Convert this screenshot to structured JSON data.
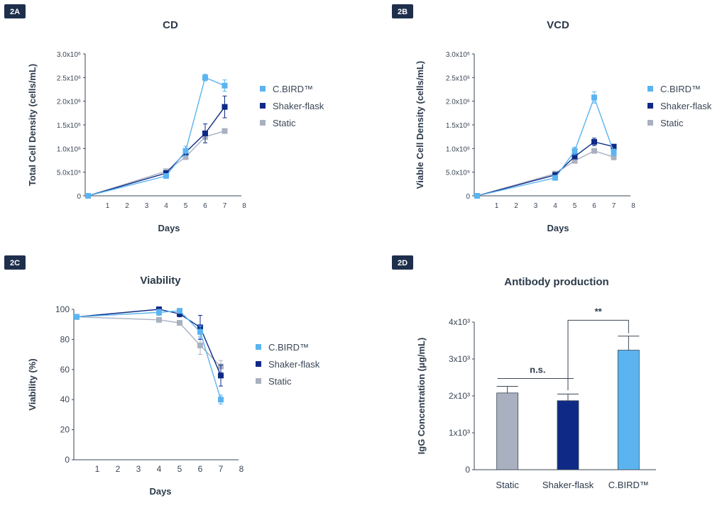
{
  "colors": {
    "cbird": "#5bb4f0",
    "shaker": "#0e2a86",
    "static": "#a9b1c0",
    "tag": "#1e2f4c"
  },
  "chart_data": [
    {
      "id": "2A",
      "type": "line",
      "title": "CD",
      "xlabel": "Days",
      "ylabel": "Total Cell Density (cells/mL)",
      "xlim": [
        0,
        8
      ],
      "ylim": [
        0,
        3000000
      ],
      "xticks": [
        "1",
        "2",
        "3",
        "4",
        "5",
        "6",
        "7",
        "8"
      ],
      "yticks": [
        {
          "v": 0,
          "label": "0"
        },
        {
          "v": 500000,
          "label": "5.0x10⁵"
        },
        {
          "v": 1000000,
          "label": "1.0x10⁶"
        },
        {
          "v": 1500000,
          "label": "1.5x10⁶"
        },
        {
          "v": 2000000,
          "label": "2.0x10⁶"
        },
        {
          "v": 2500000,
          "label": "2.5x10⁶"
        },
        {
          "v": 3000000,
          "label": "3.0x10⁶"
        }
      ],
      "legend_position": "right",
      "series": [
        {
          "name": "C.BIRD™",
          "color": "cbird",
          "x": [
            0,
            4,
            5,
            6,
            7
          ],
          "y": [
            0,
            420000,
            950000,
            2500000,
            2330000
          ],
          "err": [
            0,
            30000,
            100000,
            70000,
            120000
          ]
        },
        {
          "name": "Shaker-flask",
          "color": "shaker",
          "x": [
            0,
            4,
            5,
            6,
            7
          ],
          "y": [
            0,
            480000,
            920000,
            1320000,
            1880000
          ],
          "err": [
            0,
            30000,
            60000,
            200000,
            230000
          ]
        },
        {
          "name": "Static",
          "color": "static",
          "x": [
            0,
            4,
            5,
            6,
            7
          ],
          "y": [
            0,
            520000,
            820000,
            1250000,
            1370000
          ],
          "err": [
            0,
            30000,
            50000,
            60000,
            40000
          ]
        }
      ]
    },
    {
      "id": "2B",
      "type": "line",
      "title": "VCD",
      "xlabel": "Days",
      "ylabel": "Viable Cell Density (cells/mL)",
      "xlim": [
        0,
        8
      ],
      "ylim": [
        0,
        3000000
      ],
      "xticks": [
        "1",
        "2",
        "3",
        "4",
        "5",
        "6",
        "7",
        "8"
      ],
      "yticks": [
        {
          "v": 0,
          "label": "0"
        },
        {
          "v": 500000,
          "label": "5.0x10⁵"
        },
        {
          "v": 1000000,
          "label": "1.0x10⁶"
        },
        {
          "v": 1500000,
          "label": "1.5x10⁶"
        },
        {
          "v": 2000000,
          "label": "2.0x10⁶"
        },
        {
          "v": 2500000,
          "label": "2.5x10⁶"
        },
        {
          "v": 3000000,
          "label": "3.0x10⁶"
        }
      ],
      "legend_position": "right",
      "series": [
        {
          "name": "C.BIRD™",
          "color": "cbird",
          "x": [
            0,
            4,
            5,
            6,
            7
          ],
          "y": [
            0,
            380000,
            950000,
            2080000,
            920000
          ],
          "err": [
            0,
            30000,
            80000,
            120000,
            70000
          ]
        },
        {
          "name": "Shaker-flask",
          "color": "shaker",
          "x": [
            0,
            4,
            5,
            6,
            7
          ],
          "y": [
            0,
            440000,
            830000,
            1140000,
            1040000
          ],
          "err": [
            0,
            30000,
            50000,
            80000,
            40000
          ]
        },
        {
          "name": "Static",
          "color": "static",
          "x": [
            0,
            4,
            5,
            6,
            7
          ],
          "y": [
            0,
            470000,
            740000,
            950000,
            820000
          ],
          "err": [
            0,
            30000,
            50000,
            40000,
            60000
          ]
        }
      ]
    },
    {
      "id": "2C",
      "type": "line",
      "title": "Viability",
      "xlabel": "Days",
      "ylabel": "Viability (%)",
      "xlim": [
        0,
        8
      ],
      "ylim": [
        0,
        100
      ],
      "xticks": [
        "1",
        "2",
        "3",
        "4",
        "5",
        "6",
        "7",
        "8"
      ],
      "yticks": [
        {
          "v": 0,
          "label": "0"
        },
        {
          "v": 20,
          "label": "20"
        },
        {
          "v": 40,
          "label": "40"
        },
        {
          "v": 60,
          "label": "60"
        },
        {
          "v": 80,
          "label": "80"
        },
        {
          "v": 100,
          "label": "100"
        }
      ],
      "legend_position": "right",
      "series": [
        {
          "name": "C.BIRD™",
          "color": "cbird",
          "x": [
            0,
            4,
            5,
            6,
            7
          ],
          "y": [
            95,
            98,
            99,
            85,
            40
          ],
          "err": [
            0,
            2,
            1,
            4,
            3
          ]
        },
        {
          "name": "Shaker-flask",
          "color": "shaker",
          "x": [
            0,
            4,
            5,
            6,
            7
          ],
          "y": [
            95,
            100,
            97,
            88,
            56
          ],
          "err": [
            0,
            1,
            2,
            8,
            7
          ]
        },
        {
          "name": "Static",
          "color": "static",
          "x": [
            0,
            4,
            5,
            6,
            7
          ],
          "y": [
            95,
            93,
            91,
            76,
            62
          ],
          "err": [
            0,
            1,
            1,
            6,
            4
          ]
        }
      ]
    },
    {
      "id": "2D",
      "type": "bar",
      "title": "Antibody production",
      "xlabel": "",
      "ylabel": "IgG Concentration (μg/mL)",
      "ylim": [
        0,
        4000
      ],
      "yticks": [
        {
          "v": 0,
          "label": "0"
        },
        {
          "v": 1000,
          "label": "1x10³"
        },
        {
          "v": 2000,
          "label": "2x10³"
        },
        {
          "v": 3000,
          "label": "3x10³"
        },
        {
          "v": 4000,
          "label": "4x10³"
        }
      ],
      "categories": [
        "Static",
        "Shaker-flask",
        "C.BIRD™"
      ],
      "values": [
        2080,
        1870,
        3240
      ],
      "err": [
        180,
        180,
        380
      ],
      "bar_colors": [
        "static",
        "shaker",
        "cbird"
      ],
      "annotations": [
        {
          "text": "n.s.",
          "from": 0,
          "to": 1
        },
        {
          "text": "**",
          "from": 1,
          "to": 2
        }
      ]
    }
  ]
}
